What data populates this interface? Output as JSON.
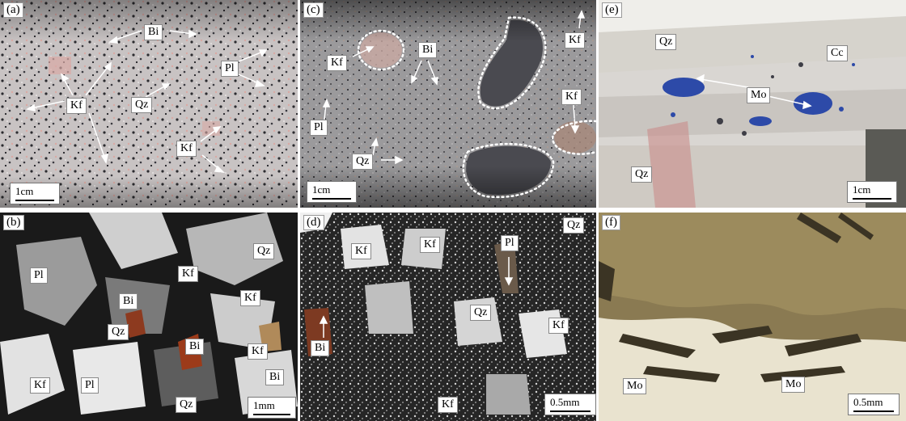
{
  "panels": {
    "a": {
      "label": "(a)",
      "scale": "1cm",
      "minerals": {
        "bi": "Bi",
        "pl": "Pl",
        "kf1": "Kf",
        "qz": "Qz",
        "kf2": "Kf"
      }
    },
    "b": {
      "label": "(b)",
      "scale": "1mm",
      "minerals": {
        "pl1": "Pl",
        "kf1": "Kf",
        "qz1": "Qz",
        "kf2": "Kf",
        "bi1": "Bi",
        "qz2": "Qz",
        "bi2": "Bi",
        "kf3": "Kf",
        "bi3": "Bi",
        "kf4": "Kf",
        "pl2": "Pl",
        "qz3": "Qz"
      }
    },
    "c": {
      "label": "(c)",
      "scale": "1cm",
      "minerals": {
        "kf1": "Kf",
        "bi": "Bi",
        "kf2": "Kf",
        "pl": "Pl",
        "kf3": "Kf",
        "qz": "Qz"
      }
    },
    "d": {
      "label": "(d)",
      "scale": "0.5mm",
      "minerals": {
        "qz1": "Qz",
        "kf1": "Kf",
        "kf2": "Kf",
        "pl": "Pl",
        "qz2": "Qz",
        "kf3": "Kf",
        "bi": "Bi",
        "kf4": "Kf"
      }
    },
    "e": {
      "label": "(e)",
      "scale": "1cm",
      "minerals": {
        "qz1": "Qz",
        "cc": "Cc",
        "mo": "Mo",
        "qz2": "Qz"
      }
    },
    "f": {
      "label": "(f)",
      "scale": "0.5mm",
      "minerals": {
        "mo1": "Mo",
        "mo2": "Mo"
      }
    }
  }
}
